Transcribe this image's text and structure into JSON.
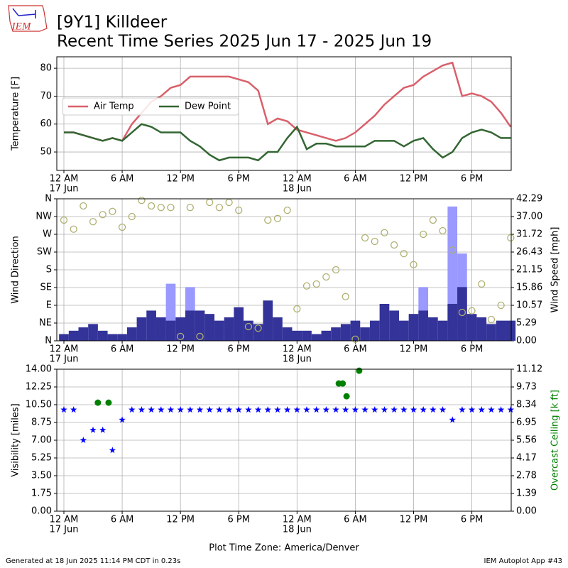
{
  "header": {
    "title": "[9Y1] Killdeer",
    "subtitle": "Recent Time Series 2025 Jun 17 - 2025 Jun 19",
    "logo_text": "IEM"
  },
  "footer": {
    "left": "Generated at 18 Jun 2025 11:14 PM CDT in 0.23s",
    "right": "IEM Autoplot App #43"
  },
  "chart_data": [
    {
      "type": "line",
      "ylabel": "Temperature [F]",
      "x": [
        0,
        1,
        2,
        3,
        4,
        5,
        6,
        7,
        8,
        9,
        10,
        11,
        12,
        13,
        14,
        15,
        16,
        17,
        18,
        19,
        20,
        21,
        22,
        23,
        24,
        25,
        26,
        27,
        28,
        29,
        30,
        31,
        32,
        33,
        34,
        35,
        36,
        37,
        38,
        39,
        40,
        41,
        42,
        43,
        44,
        45,
        46
      ],
      "series": [
        {
          "name": "Air Temp",
          "color": "#d9606b",
          "values": [
            57,
            57,
            56,
            55,
            54,
            55,
            54,
            60,
            64,
            68,
            70,
            73,
            74,
            77,
            77,
            77,
            77,
            77,
            76,
            75,
            72,
            60,
            62,
            61,
            58,
            57,
            56,
            55,
            54,
            55,
            57,
            60,
            63,
            67,
            70,
            73,
            74,
            77,
            79,
            81,
            82,
            70,
            71,
            70,
            68,
            64,
            59
          ]
        },
        {
          "name": "Dew Point",
          "color": "#336633",
          "values": [
            57,
            57,
            56,
            55,
            54,
            55,
            54,
            57,
            60,
            59,
            57,
            57,
            57,
            54,
            52,
            49,
            47,
            48,
            48,
            48,
            47,
            50,
            50,
            55,
            59,
            51,
            53,
            53,
            52,
            52,
            52,
            52,
            54,
            54,
            54,
            52,
            54,
            55,
            51,
            48,
            50,
            55,
            57,
            58,
            57,
            55,
            55
          ]
        }
      ],
      "xlim": [
        -0.73,
        46.05
      ],
      "ylim": [
        43.4,
        84.1
      ],
      "yticks": [
        50,
        60,
        70,
        80
      ],
      "xticks": [
        {
          "value": 0,
          "label": "12 AM"
        },
        {
          "value": 6,
          "label": "6 AM"
        },
        {
          "value": 12,
          "label": "12 PM"
        },
        {
          "value": 18,
          "label": "6 PM"
        },
        {
          "value": 24,
          "label": "12 AM"
        },
        {
          "value": 30,
          "label": "6 AM"
        },
        {
          "value": 36,
          "label": "12 PM"
        },
        {
          "value": 42,
          "label": "6 PM"
        }
      ],
      "xdates": [
        {
          "value": 0,
          "label": "17 Jun"
        },
        {
          "value": 24,
          "label": "18 Jun"
        }
      ],
      "grid": true,
      "legend": "center left"
    },
    {
      "type": "combo",
      "ylabel": "Wind Direction",
      "y2label": "Wind Speed [mph]",
      "x": [
        0,
        1,
        2,
        3,
        4,
        5,
        6,
        7,
        8,
        9,
        10,
        11,
        12,
        13,
        14,
        15,
        16,
        17,
        18,
        19,
        20,
        21,
        22,
        23,
        24,
        25,
        26,
        27,
        28,
        29,
        30,
        31,
        32,
        33,
        34,
        35,
        36,
        37,
        38,
        39,
        40,
        41,
        42,
        43,
        44,
        45,
        46
      ],
      "series": [
        {
          "marker": "bar",
          "axis": "y2",
          "color": "#9999ff",
          "values": [
            null,
            null,
            null,
            null,
            null,
            null,
            null,
            null,
            null,
            null,
            null,
            17,
            null,
            16,
            null,
            null,
            null,
            null,
            null,
            null,
            null,
            null,
            null,
            null,
            null,
            null,
            null,
            null,
            null,
            null,
            null,
            null,
            null,
            null,
            null,
            null,
            null,
            16,
            null,
            null,
            40,
            26,
            null,
            null,
            null,
            null,
            null
          ]
        },
        {
          "marker": "bar",
          "axis": "y2",
          "color": "#333399",
          "values": [
            2,
            3,
            4,
            5,
            3,
            2,
            2,
            4,
            7,
            9,
            7,
            6,
            7,
            9,
            9,
            8,
            6,
            7,
            10,
            6,
            5,
            12,
            7,
            4,
            3,
            3,
            2,
            3,
            4,
            5,
            6,
            4,
            6,
            11,
            9,
            6,
            8,
            9,
            7,
            6,
            11,
            16,
            8,
            7,
            5,
            6,
            6
          ]
        },
        {
          "marker": "circle-open",
          "color": "#b0b070",
          "values": [
            306,
            283,
            342,
            302,
            320,
            328,
            288,
            315,
            356,
            342,
            338,
            338,
            11,
            338,
            11,
            351,
            338,
            351,
            331,
            36,
            32,
            306,
            310,
            331,
            81,
            139,
            144,
            162,
            180,
            112,
            4,
            261,
            252,
            274,
            243,
            221,
            193,
            270,
            306,
            279,
            230,
            72,
            76,
            144,
            54,
            90,
            261
          ]
        }
      ],
      "xlim": [
        -0.73,
        46.05
      ],
      "ylim": [
        0,
        360
      ],
      "yticks": [
        {
          "value": 0,
          "label": "N"
        },
        {
          "value": 45,
          "label": "NE"
        },
        {
          "value": 90,
          "label": "E"
        },
        {
          "value": 135,
          "label": "SE"
        },
        {
          "value": 180,
          "label": "S"
        },
        {
          "value": 225,
          "label": "SW"
        },
        {
          "value": 270,
          "label": "W"
        },
        {
          "value": 315,
          "label": "NW"
        },
        {
          "value": 360,
          "label": "N"
        }
      ],
      "y2lim": [
        0,
        42.29
      ],
      "y2ticks": [
        {
          "value": 0,
          "label": "0.00"
        },
        5.29,
        10.57,
        15.86,
        21.15,
        26.43,
        31.72,
        {
          "value": 37,
          "label": "37.00"
        },
        42.29
      ],
      "xticks": [
        {
          "value": 0,
          "label": "12 AM"
        },
        {
          "value": 6,
          "label": "6 AM"
        },
        {
          "value": 12,
          "label": "12 PM"
        },
        {
          "value": 18,
          "label": "6 PM"
        },
        {
          "value": 24,
          "label": "12 AM"
        },
        {
          "value": 30,
          "label": "6 AM"
        },
        {
          "value": 36,
          "label": "12 PM"
        },
        {
          "value": 42,
          "label": "6 PM"
        }
      ],
      "xdates": [
        {
          "value": 0,
          "label": "17 Jun"
        },
        {
          "value": 24,
          "label": "18 Jun"
        }
      ],
      "grid": true
    },
    {
      "type": "scatter",
      "ylabel": "Visibility [miles]",
      "y2label": "Overcast Ceiling [k ft]",
      "y2color": "#008000",
      "xlabel": "Plot Time Zone: America/Denver",
      "series": [
        {
          "marker": "star",
          "color": "#0000ff",
          "x": [
            0,
            1,
            2,
            3,
            4,
            5,
            6,
            7,
            8,
            9,
            10,
            11,
            12,
            13,
            14,
            15,
            16,
            17,
            18,
            19,
            20,
            21,
            22,
            23,
            24,
            25,
            26,
            27,
            28,
            29,
            30,
            31,
            32,
            33,
            34,
            35,
            36,
            37,
            38,
            39,
            40,
            41,
            42,
            43,
            44,
            45,
            46
          ],
          "values": [
            10,
            10,
            7,
            8,
            8,
            6,
            9,
            10,
            10,
            10,
            10,
            10,
            10,
            10,
            10,
            10,
            10,
            10,
            10,
            10,
            10,
            10,
            10,
            10,
            10,
            10,
            10,
            10,
            10,
            10,
            10,
            10,
            10,
            10,
            10,
            10,
            10,
            10,
            10,
            10,
            9,
            10,
            10,
            10,
            10,
            10,
            10
          ]
        },
        {
          "marker": "circle",
          "axis": "y2",
          "color": "#008000",
          "x": [
            3.5,
            4.6,
            28.3,
            28.7,
            29.1,
            30.4
          ],
          "values": [
            8.5,
            8.5,
            10,
            10,
            9,
            11
          ]
        }
      ],
      "xlim": [
        -0.73,
        46.05
      ],
      "ylim": [
        0,
        14
      ],
      "yticks": [
        {
          "value": 0,
          "label": "0.00"
        },
        1.75,
        {
          "value": 3.5,
          "label": "3.50"
        },
        5.25,
        {
          "value": 7,
          "label": "7.00"
        },
        8.75,
        {
          "value": 10.5,
          "label": "10.50"
        },
        12.25,
        {
          "value": 14,
          "label": "14.00"
        }
      ],
      "y2lim": [
        0,
        11.12
      ],
      "y2ticks": [
        {
          "value": 0,
          "label": "0.00"
        },
        1.39,
        2.78,
        4.17,
        5.56,
        6.95,
        8.34,
        9.73,
        11.12
      ],
      "xticks": [
        {
          "value": 0,
          "label": "12 AM"
        },
        {
          "value": 6,
          "label": "6 AM"
        },
        {
          "value": 12,
          "label": "12 PM"
        },
        {
          "value": 18,
          "label": "6 PM"
        },
        {
          "value": 24,
          "label": "12 AM"
        },
        {
          "value": 30,
          "label": "6 AM"
        },
        {
          "value": 36,
          "label": "12 PM"
        },
        {
          "value": 42,
          "label": "6 PM"
        }
      ],
      "xdates": [
        {
          "value": 0,
          "label": "17 Jun"
        },
        {
          "value": 24,
          "label": "18 Jun"
        }
      ],
      "grid": true
    }
  ]
}
